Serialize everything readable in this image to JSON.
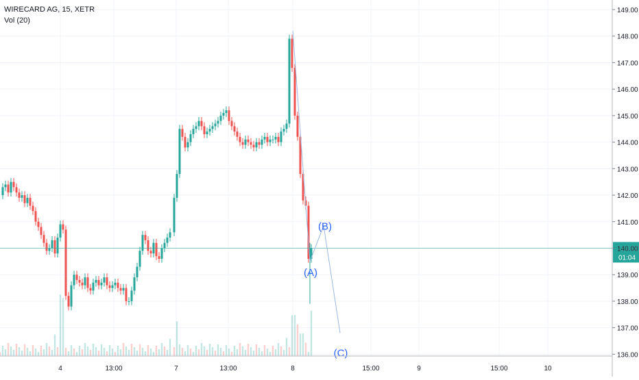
{
  "header": {
    "symbol_line": "WIRECARD AG, 15, XETR",
    "volume_line": "Vol (20)"
  },
  "price_axis": {
    "labels": [
      "149.00",
      "148.00",
      "147.00",
      "146.00",
      "145.00",
      "144.00",
      "143.00",
      "142.00",
      "141.00",
      "140.00",
      "139.00",
      "138.00",
      "137.00",
      "136.00"
    ],
    "current_price": "140.00",
    "countdown": "01:04"
  },
  "time_axis": {
    "labels": [
      "4",
      "13:00",
      "7",
      "13:00",
      "8",
      "15:00",
      "9",
      "15:00",
      "10"
    ]
  },
  "annotations": {
    "wave_a": "(A)",
    "wave_b": "(B)",
    "wave_c": "(C)"
  },
  "colors": {
    "up": "#26a69a",
    "down": "#ef5350",
    "grid": "#f0f3fa",
    "wave_line": "#9bb7e0",
    "wave_text": "#2962ff",
    "price_line": "#26a69a",
    "axis_text": "#131722"
  },
  "chart_data": {
    "type": "candlestick",
    "title": "WIRECARD AG, 15, XETR",
    "ylim": [
      136.0,
      149.3
    ],
    "grid": true,
    "legend": "top-left",
    "last_price": 140.0,
    "wave_points": [
      {
        "label": "(A)",
        "date": "8",
        "price": 139.5
      },
      {
        "label": "(B)",
        "date": "8",
        "price": 140.85
      },
      {
        "label": "(C)",
        "date": "8",
        "price": 136.8
      }
    ],
    "series": [
      {
        "name": "Vol (20)",
        "type": "volume"
      }
    ]
  }
}
